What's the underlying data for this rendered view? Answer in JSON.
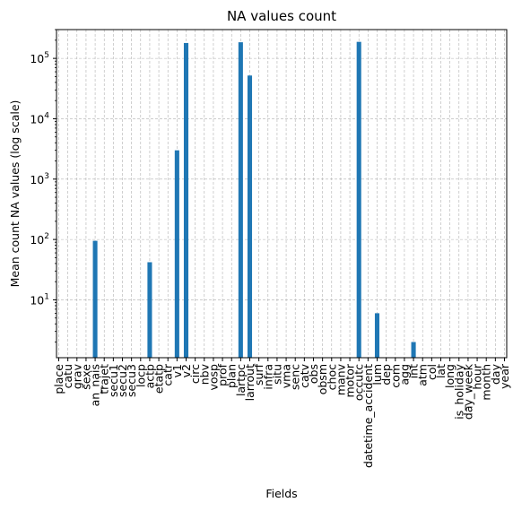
{
  "chart_data": {
    "type": "bar",
    "title": "NA values count",
    "xlabel": "Fields",
    "ylabel": "Mean count NA values (log scale)",
    "yscale": "log",
    "ylim": [
      1.1,
      300000
    ],
    "grid": true,
    "bar_color": "#1f77b4",
    "y_ticks": [
      {
        "value": 10,
        "base": "10",
        "exp": "1"
      },
      {
        "value": 100,
        "base": "10",
        "exp": "2"
      },
      {
        "value": 1000,
        "base": "10",
        "exp": "3"
      },
      {
        "value": 10000,
        "base": "10",
        "exp": "4"
      },
      {
        "value": 100000,
        "base": "10",
        "exp": "5"
      }
    ],
    "categories": [
      "place",
      "catu",
      "grav",
      "sexe",
      "an_nais",
      "trajet",
      "secu1",
      "secu2",
      "secu3",
      "locp",
      "actp",
      "etatp",
      "catr",
      "v1",
      "v2",
      "circ",
      "nbv",
      "vosp",
      "prof",
      "plan",
      "lartpc",
      "larrout",
      "surf",
      "infra",
      "situ",
      "vma",
      "senc",
      "catv",
      "obs",
      "obsm",
      "choc",
      "manv",
      "motor",
      "occutc",
      "datetime_accident",
      "lum",
      "dep",
      "com",
      "agg",
      "int",
      "atm",
      "col",
      "lat",
      "long",
      "is_holiday",
      "day_week",
      "hour",
      "month",
      "day",
      "year"
    ],
    "values": [
      0,
      0,
      0,
      0,
      95,
      0,
      0,
      0,
      0,
      0,
      42,
      0,
      0,
      3000,
      180000,
      0,
      0,
      0,
      0,
      0,
      185000,
      52000,
      0,
      0,
      0,
      0,
      0,
      0,
      0,
      0,
      0,
      0,
      0,
      188000,
      0,
      6,
      0,
      0,
      0,
      2,
      0,
      0,
      0,
      0,
      0,
      0,
      0,
      0,
      0,
      0
    ]
  }
}
